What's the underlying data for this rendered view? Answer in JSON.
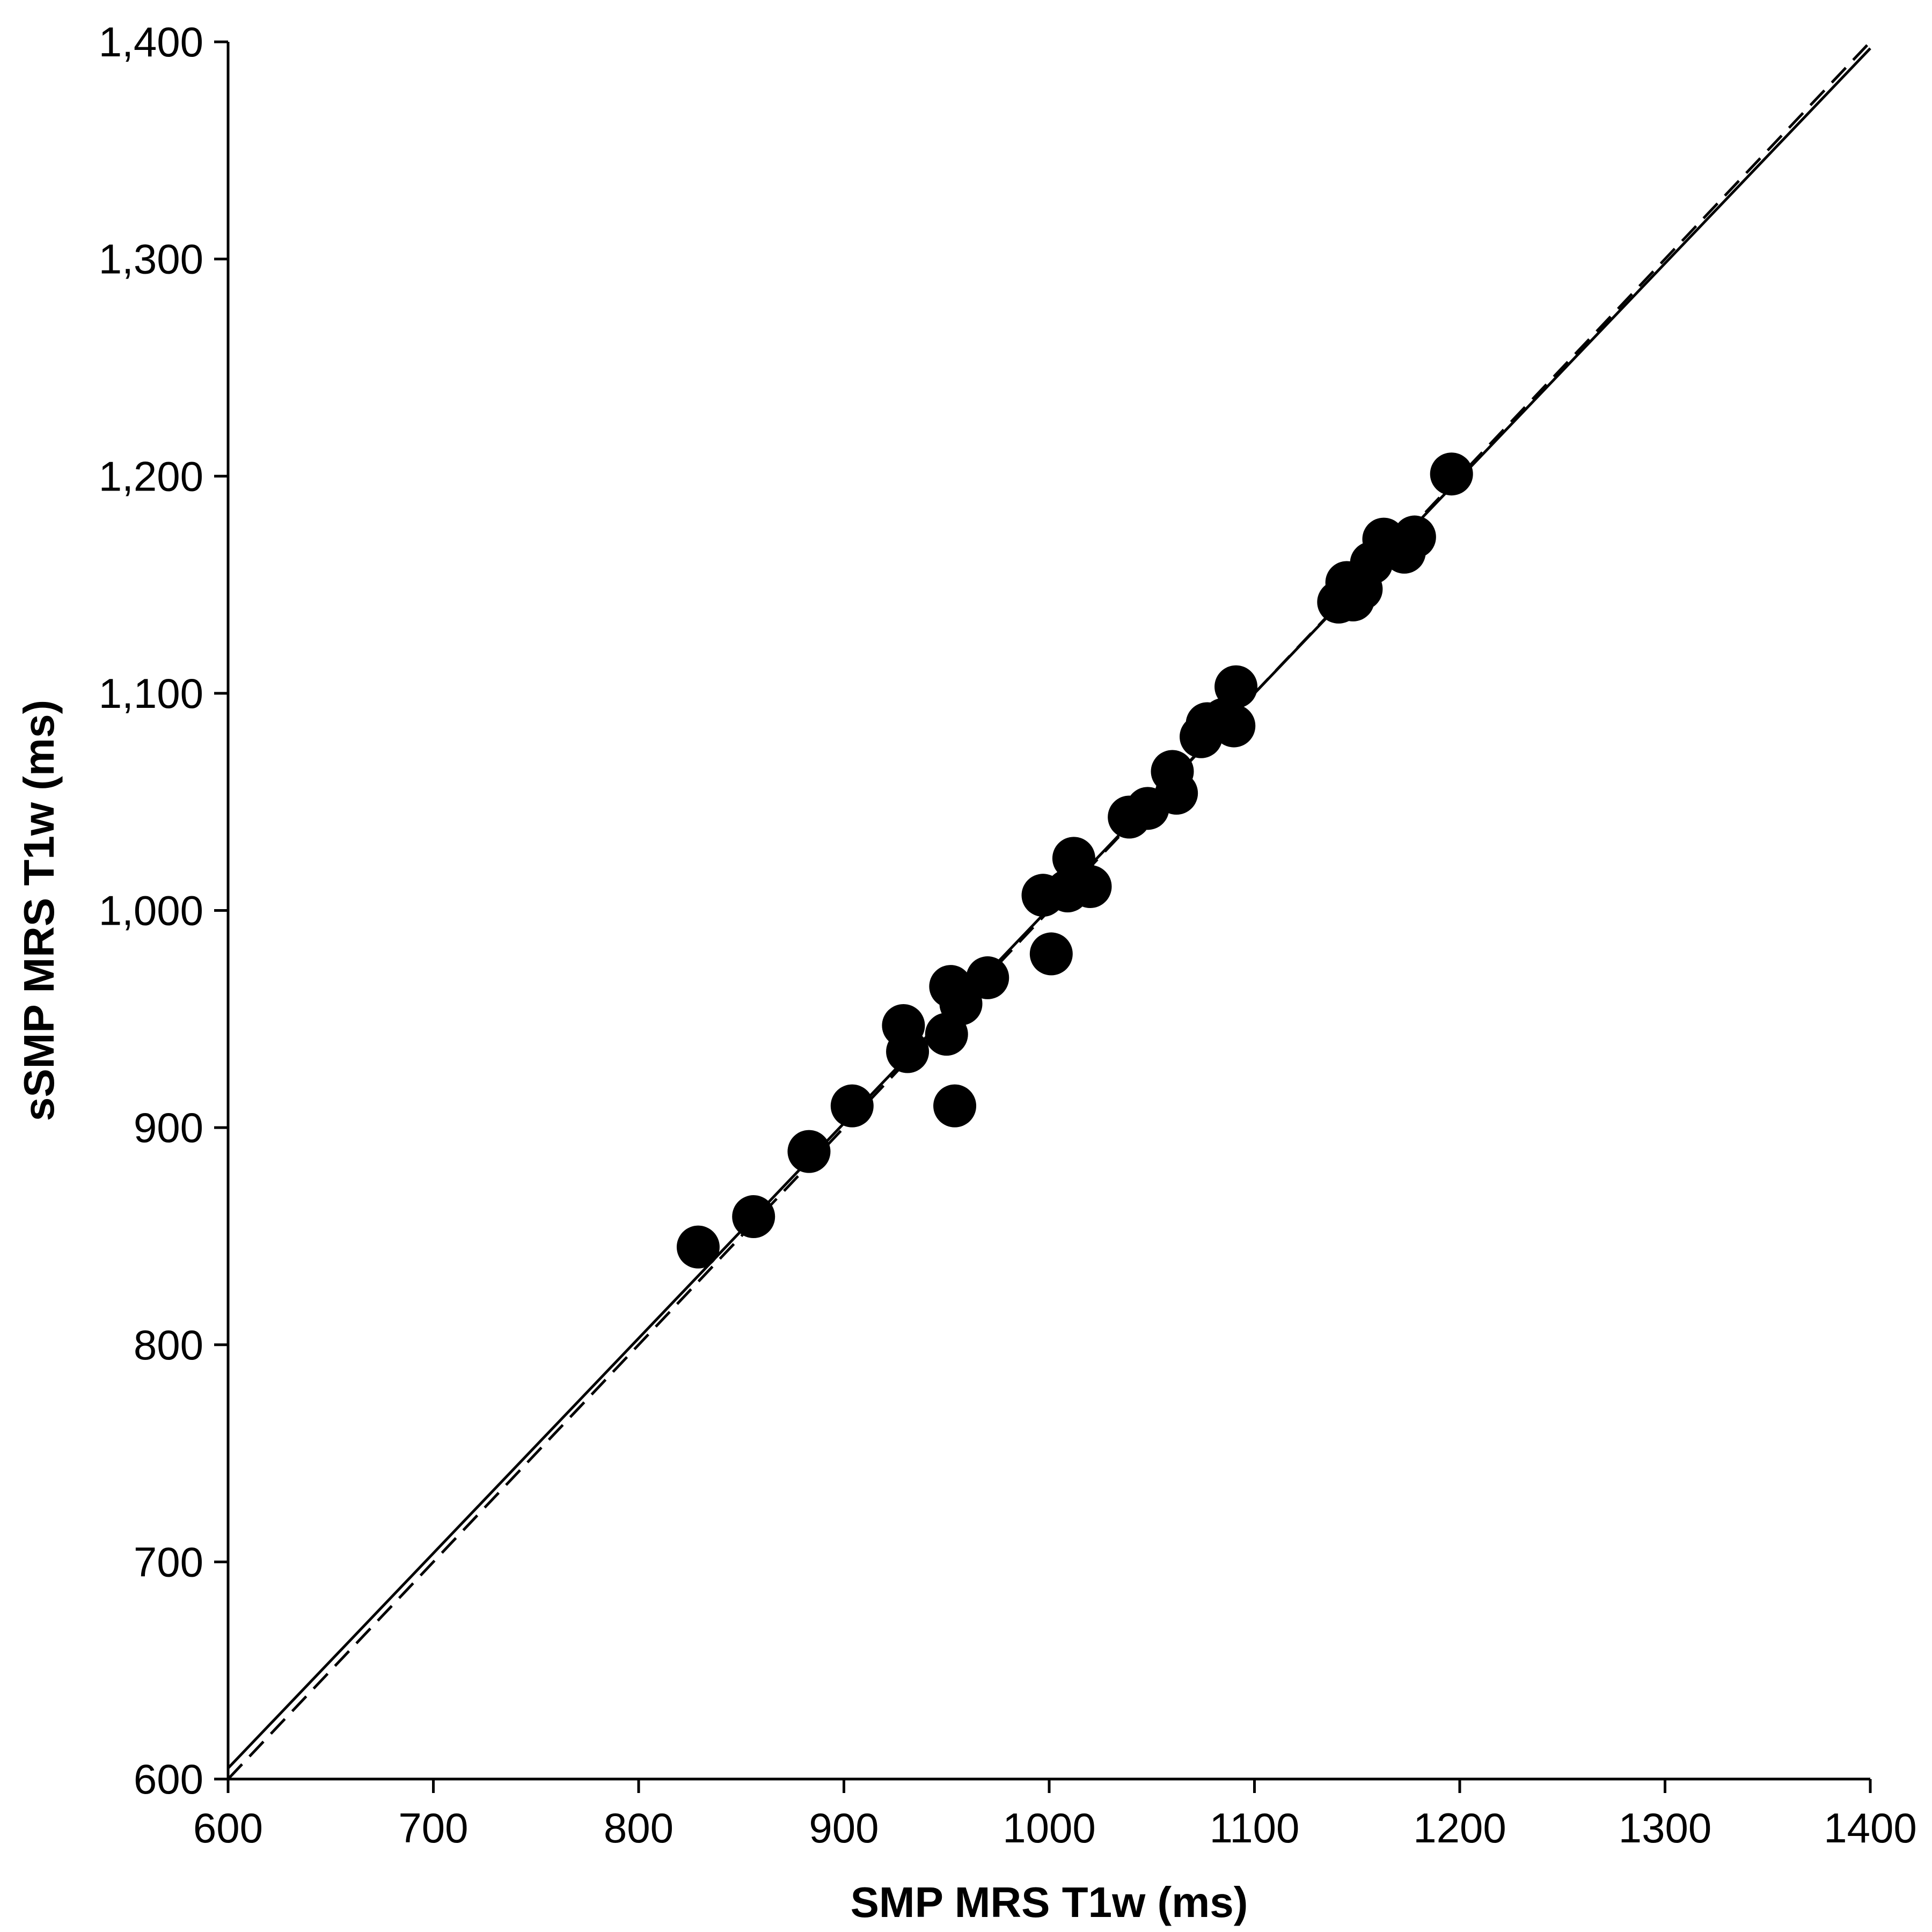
{
  "chart_data": {
    "type": "scatter",
    "xlabel": "SMP MRS T1w (ms)",
    "ylabel": "sSMP MRS T1w (ms)",
    "xlim": [
      600,
      1400
    ],
    "ylim": [
      600,
      1400
    ],
    "x_ticks": [
      {
        "value": 600,
        "label": "600"
      },
      {
        "value": 700,
        "label": "700"
      },
      {
        "value": 800,
        "label": "800"
      },
      {
        "value": 900,
        "label": "900"
      },
      {
        "value": 1000,
        "label": "1000"
      },
      {
        "value": 1100,
        "label": "1100"
      },
      {
        "value": 1200,
        "label": "1200"
      },
      {
        "value": 1300,
        "label": "1300"
      },
      {
        "value": 1400,
        "label": "1400"
      }
    ],
    "y_ticks": [
      {
        "value": 600,
        "label": "600"
      },
      {
        "value": 700,
        "label": "700"
      },
      {
        "value": 800,
        "label": "800"
      },
      {
        "value": 900,
        "label": "900"
      },
      {
        "value": 1000,
        "label": "1,000"
      },
      {
        "value": 1100,
        "label": "1,100"
      },
      {
        "value": 1200,
        "label": "1,200"
      },
      {
        "value": 1300,
        "label": "1,300"
      },
      {
        "value": 1400,
        "label": "1,400"
      }
    ],
    "grid": false,
    "legend": "none",
    "points": [
      {
        "x": 829,
        "y": 845
      },
      {
        "x": 856,
        "y": 859
      },
      {
        "x": 883,
        "y": 889
      },
      {
        "x": 904,
        "y": 910
      },
      {
        "x": 929,
        "y": 947
      },
      {
        "x": 931,
        "y": 935
      },
      {
        "x": 950,
        "y": 943
      },
      {
        "x": 952,
        "y": 965
      },
      {
        "x": 954,
        "y": 910
      },
      {
        "x": 957,
        "y": 957
      },
      {
        "x": 970,
        "y": 969
      },
      {
        "x": 997,
        "y": 1007
      },
      {
        "x": 1001,
        "y": 980
      },
      {
        "x": 1009,
        "y": 1009
      },
      {
        "x": 1012,
        "y": 1024
      },
      {
        "x": 1020,
        "y": 1011
      },
      {
        "x": 1039,
        "y": 1043
      },
      {
        "x": 1048,
        "y": 1047
      },
      {
        "x": 1060,
        "y": 1064
      },
      {
        "x": 1062,
        "y": 1054
      },
      {
        "x": 1074,
        "y": 1080
      },
      {
        "x": 1077,
        "y": 1086
      },
      {
        "x": 1085,
        "y": 1088
      },
      {
        "x": 1090,
        "y": 1085
      },
      {
        "x": 1091,
        "y": 1103
      },
      {
        "x": 1141,
        "y": 1142
      },
      {
        "x": 1145,
        "y": 1151
      },
      {
        "x": 1148,
        "y": 1143
      },
      {
        "x": 1152,
        "y": 1148
      },
      {
        "x": 1157,
        "y": 1160
      },
      {
        "x": 1163,
        "y": 1171
      },
      {
        "x": 1173,
        "y": 1165
      },
      {
        "x": 1178,
        "y": 1172
      },
      {
        "x": 1196,
        "y": 1201
      }
    ],
    "lines": [
      {
        "style": "solid",
        "x": [
          600,
          1400
        ],
        "y": [
          605,
          1397
        ]
      },
      {
        "style": "dashed",
        "x": [
          600,
          1400
        ],
        "y": [
          600,
          1400
        ]
      }
    ],
    "colors": {
      "marker": "#000000",
      "axis": "#000000",
      "line": "#000000"
    }
  }
}
